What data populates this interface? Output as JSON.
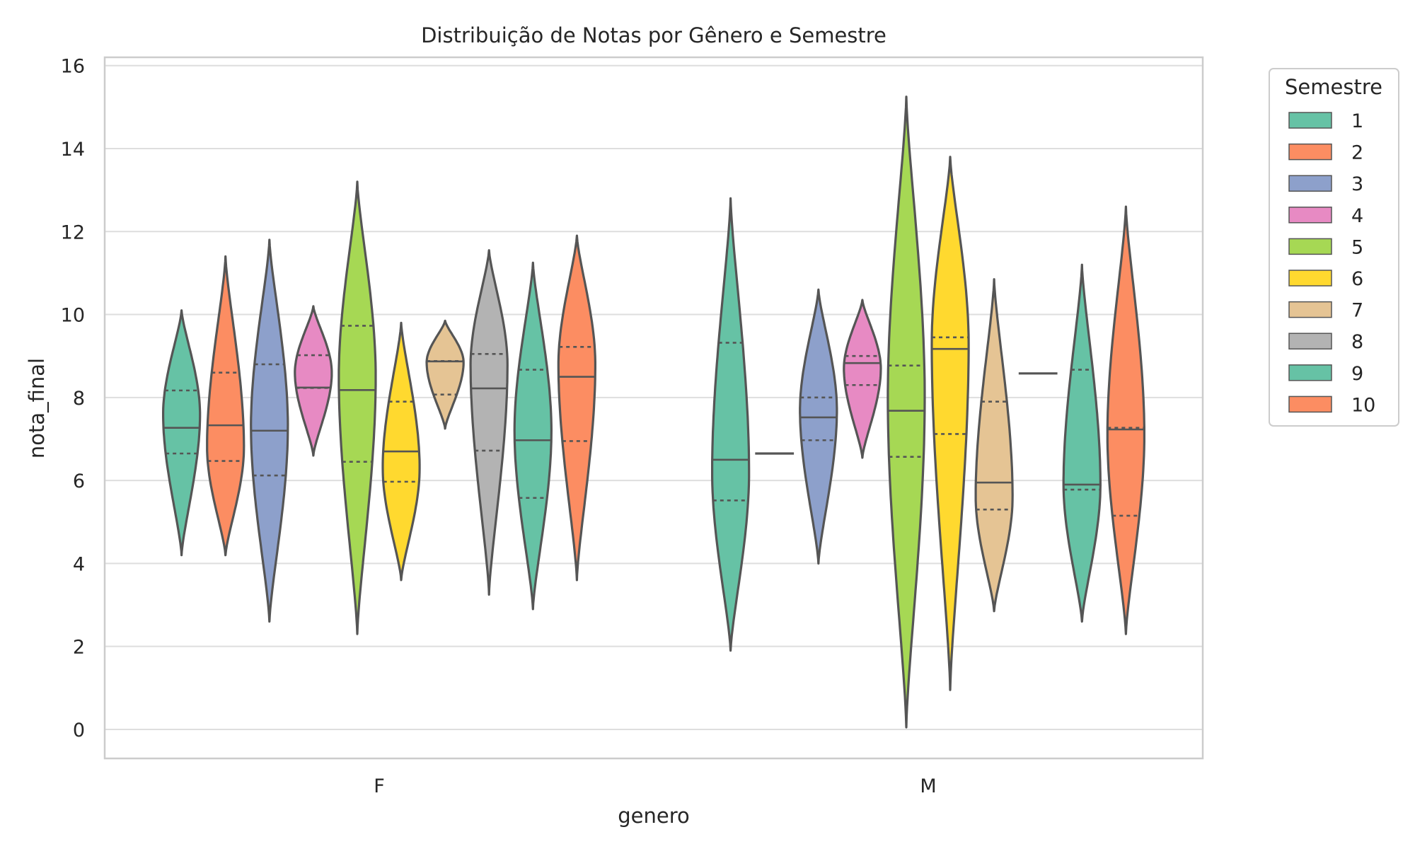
{
  "chart_data": {
    "type": "violin",
    "title": "Distribuição de Notas por Gênero e Semestre",
    "xlabel": "genero",
    "ylabel": "nota_final",
    "ylim": [
      -0.7,
      16.2
    ],
    "yticks": [
      0,
      2,
      4,
      6,
      8,
      10,
      12,
      14,
      16
    ],
    "categories": [
      "F",
      "M"
    ],
    "grid": true,
    "legend": {
      "title": "Semestre",
      "position": "outside-right"
    },
    "series": [
      {
        "name": "1",
        "color": "#66c2a5",
        "groups": [
          {
            "min": 4.2,
            "max": 10.1,
            "q1": 6.65,
            "median": 7.27,
            "q3": 8.17,
            "peak": 7.6
          },
          {
            "min": 1.9,
            "max": 12.8,
            "q1": 5.52,
            "median": 6.5,
            "q3": 9.32,
            "peak": 6.2
          }
        ]
      },
      {
        "name": "2",
        "color": "#fc8d62",
        "groups": [
          {
            "min": 4.2,
            "max": 11.4,
            "q1": 6.47,
            "median": 7.33,
            "q3": 8.6,
            "peak": 6.8
          },
          {
            "min": 6.65,
            "max": 6.65,
            "q1": 6.65,
            "median": 6.65,
            "q3": 6.65,
            "peak": 6.65
          }
        ]
      },
      {
        "name": "3",
        "color": "#8da0cb",
        "groups": [
          {
            "min": 2.6,
            "max": 11.8,
            "q1": 6.12,
            "median": 7.2,
            "q3": 8.8,
            "peak": 7.3
          },
          {
            "min": 4.0,
            "max": 10.6,
            "q1": 6.97,
            "median": 7.52,
            "q3": 8.0,
            "peak": 7.7
          }
        ]
      },
      {
        "name": "4",
        "color": "#e78ac3",
        "groups": [
          {
            "min": 6.6,
            "max": 10.2,
            "q1": 8.23,
            "median": 8.24,
            "q3": 9.02,
            "peak": 8.6
          },
          {
            "min": 6.55,
            "max": 10.35,
            "q1": 8.3,
            "median": 8.83,
            "q3": 9.0,
            "peak": 8.7
          }
        ]
      },
      {
        "name": "5",
        "color": "#a6d854",
        "groups": [
          {
            "min": 2.3,
            "max": 13.2,
            "q1": 6.45,
            "median": 8.18,
            "q3": 9.73,
            "peak": 8.5
          },
          {
            "min": 0.05,
            "max": 15.25,
            "q1": 6.57,
            "median": 7.68,
            "q3": 8.77,
            "peak": 8.0
          }
        ]
      },
      {
        "name": "6",
        "color": "#ffd92f",
        "groups": [
          {
            "min": 3.6,
            "max": 9.8,
            "q1": 5.97,
            "median": 6.7,
            "q3": 7.9,
            "peak": 6.3
          },
          {
            "min": 0.95,
            "max": 13.8,
            "q1": 7.12,
            "median": 9.17,
            "q3": 9.45,
            "peak": 9.3
          }
        ]
      },
      {
        "name": "7",
        "color": "#e5c494",
        "groups": [
          {
            "min": 7.25,
            "max": 9.85,
            "q1": 8.07,
            "median": 8.87,
            "q3": 8.88,
            "peak": 8.85
          },
          {
            "min": 2.85,
            "max": 10.85,
            "q1": 5.3,
            "median": 5.95,
            "q3": 7.9,
            "peak": 5.6
          }
        ]
      },
      {
        "name": "8",
        "color": "#b3b3b3",
        "groups": [
          {
            "min": 3.25,
            "max": 11.55,
            "q1": 6.72,
            "median": 8.22,
            "q3": 9.05,
            "peak": 8.8
          },
          {
            "min": 8.58,
            "max": 8.58,
            "q1": 8.58,
            "median": 8.58,
            "q3": 8.58,
            "peak": 8.58
          }
        ]
      },
      {
        "name": "9",
        "color": "#66c2a5",
        "groups": [
          {
            "min": 2.9,
            "max": 11.25,
            "q1": 5.58,
            "median": 6.97,
            "q3": 8.67,
            "peak": 7.2
          },
          {
            "min": 2.6,
            "max": 11.2,
            "q1": 5.78,
            "median": 5.9,
            "q3": 8.67,
            "peak": 5.9
          }
        ]
      },
      {
        "name": "10",
        "color": "#fc8d62",
        "groups": [
          {
            "min": 3.6,
            "max": 11.9,
            "q1": 6.95,
            "median": 8.5,
            "q3": 9.22,
            "peak": 8.8
          },
          {
            "min": 2.3,
            "max": 12.6,
            "q1": 5.15,
            "median": 7.23,
            "q3": 7.27,
            "peak": 7.1
          }
        ]
      }
    ]
  }
}
